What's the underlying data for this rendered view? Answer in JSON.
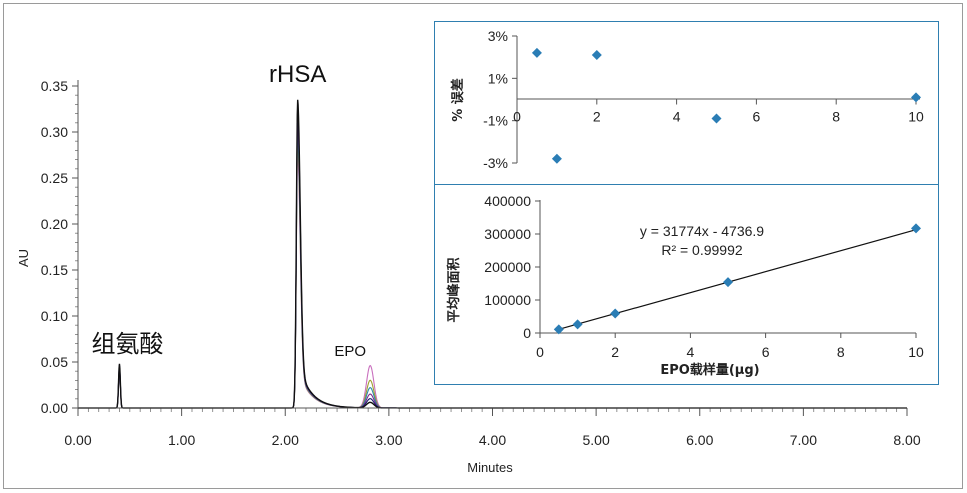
{
  "main_chart": {
    "type": "line",
    "xlabel": "Minutes",
    "ylabel": "AU",
    "xlim": [
      0,
      8
    ],
    "ylim": [
      -0.01,
      0.35
    ],
    "x_ticks": [
      "0.00",
      "1.00",
      "2.00",
      "3.00",
      "4.00",
      "5.00",
      "6.00",
      "7.00",
      "8.00"
    ],
    "y_ticks": [
      "0.00",
      "0.05",
      "0.10",
      "0.15",
      "0.20",
      "0.25",
      "0.30",
      "0.35"
    ],
    "peak_labels": [
      {
        "text": "组氨酸",
        "x": 0.4
      },
      {
        "text": "rHSA",
        "x": 2.12
      },
      {
        "text": "EPO",
        "x": 2.82
      }
    ],
    "peaks": [
      {
        "name": "组氨酸",
        "center": 0.4,
        "height": 0.048
      },
      {
        "name": "rHSA",
        "center": 2.12,
        "height": 0.335
      },
      {
        "name": "EPO",
        "center": 2.82,
        "heights": [
          0.046,
          0.03,
          0.022,
          0.015,
          0.01,
          0.006
        ]
      }
    ],
    "trace_colors": [
      "#111111",
      "#1a1a6e",
      "#7b2b8e",
      "#2a8ca8",
      "#a0a032",
      "#c96fbe"
    ]
  },
  "chart_data": [
    {
      "type": "scatter",
      "ylabel": "% 误差",
      "xlim": [
        0,
        10
      ],
      "ylim": [
        -3,
        3
      ],
      "x_ticks": [
        "0",
        "2",
        "4",
        "6",
        "8",
        "10"
      ],
      "y_ticks": [
        "3%",
        "1%",
        "-1%",
        "-3%"
      ],
      "x": [
        0.5,
        1,
        2,
        5,
        10
      ],
      "y": [
        2.2,
        -2.8,
        2.1,
        -0.9,
        0.1
      ],
      "marker_color": "#2a7db5"
    },
    {
      "type": "scatter",
      "xlabel": "EPO载样量(μg)",
      "ylabel": "平均峰面积",
      "xlim": [
        0,
        10
      ],
      "ylim": [
        0,
        400000
      ],
      "x_ticks": [
        "0",
        "2",
        "4",
        "6",
        "8",
        "10"
      ],
      "y_ticks": [
        "0",
        "100000",
        "200000",
        "300000",
        "400000"
      ],
      "x": [
        0.5,
        1,
        2,
        5,
        10
      ],
      "y": [
        11000,
        26000,
        59000,
        154000,
        317000
      ],
      "fit": {
        "slope": 31774,
        "intercept": -4736.9
      },
      "equation": "y = 31774x - 4736.9",
      "r_squared": "R² = 0.99992",
      "marker_color": "#2a7db5"
    }
  ],
  "frame_color": "#2f7fb0"
}
